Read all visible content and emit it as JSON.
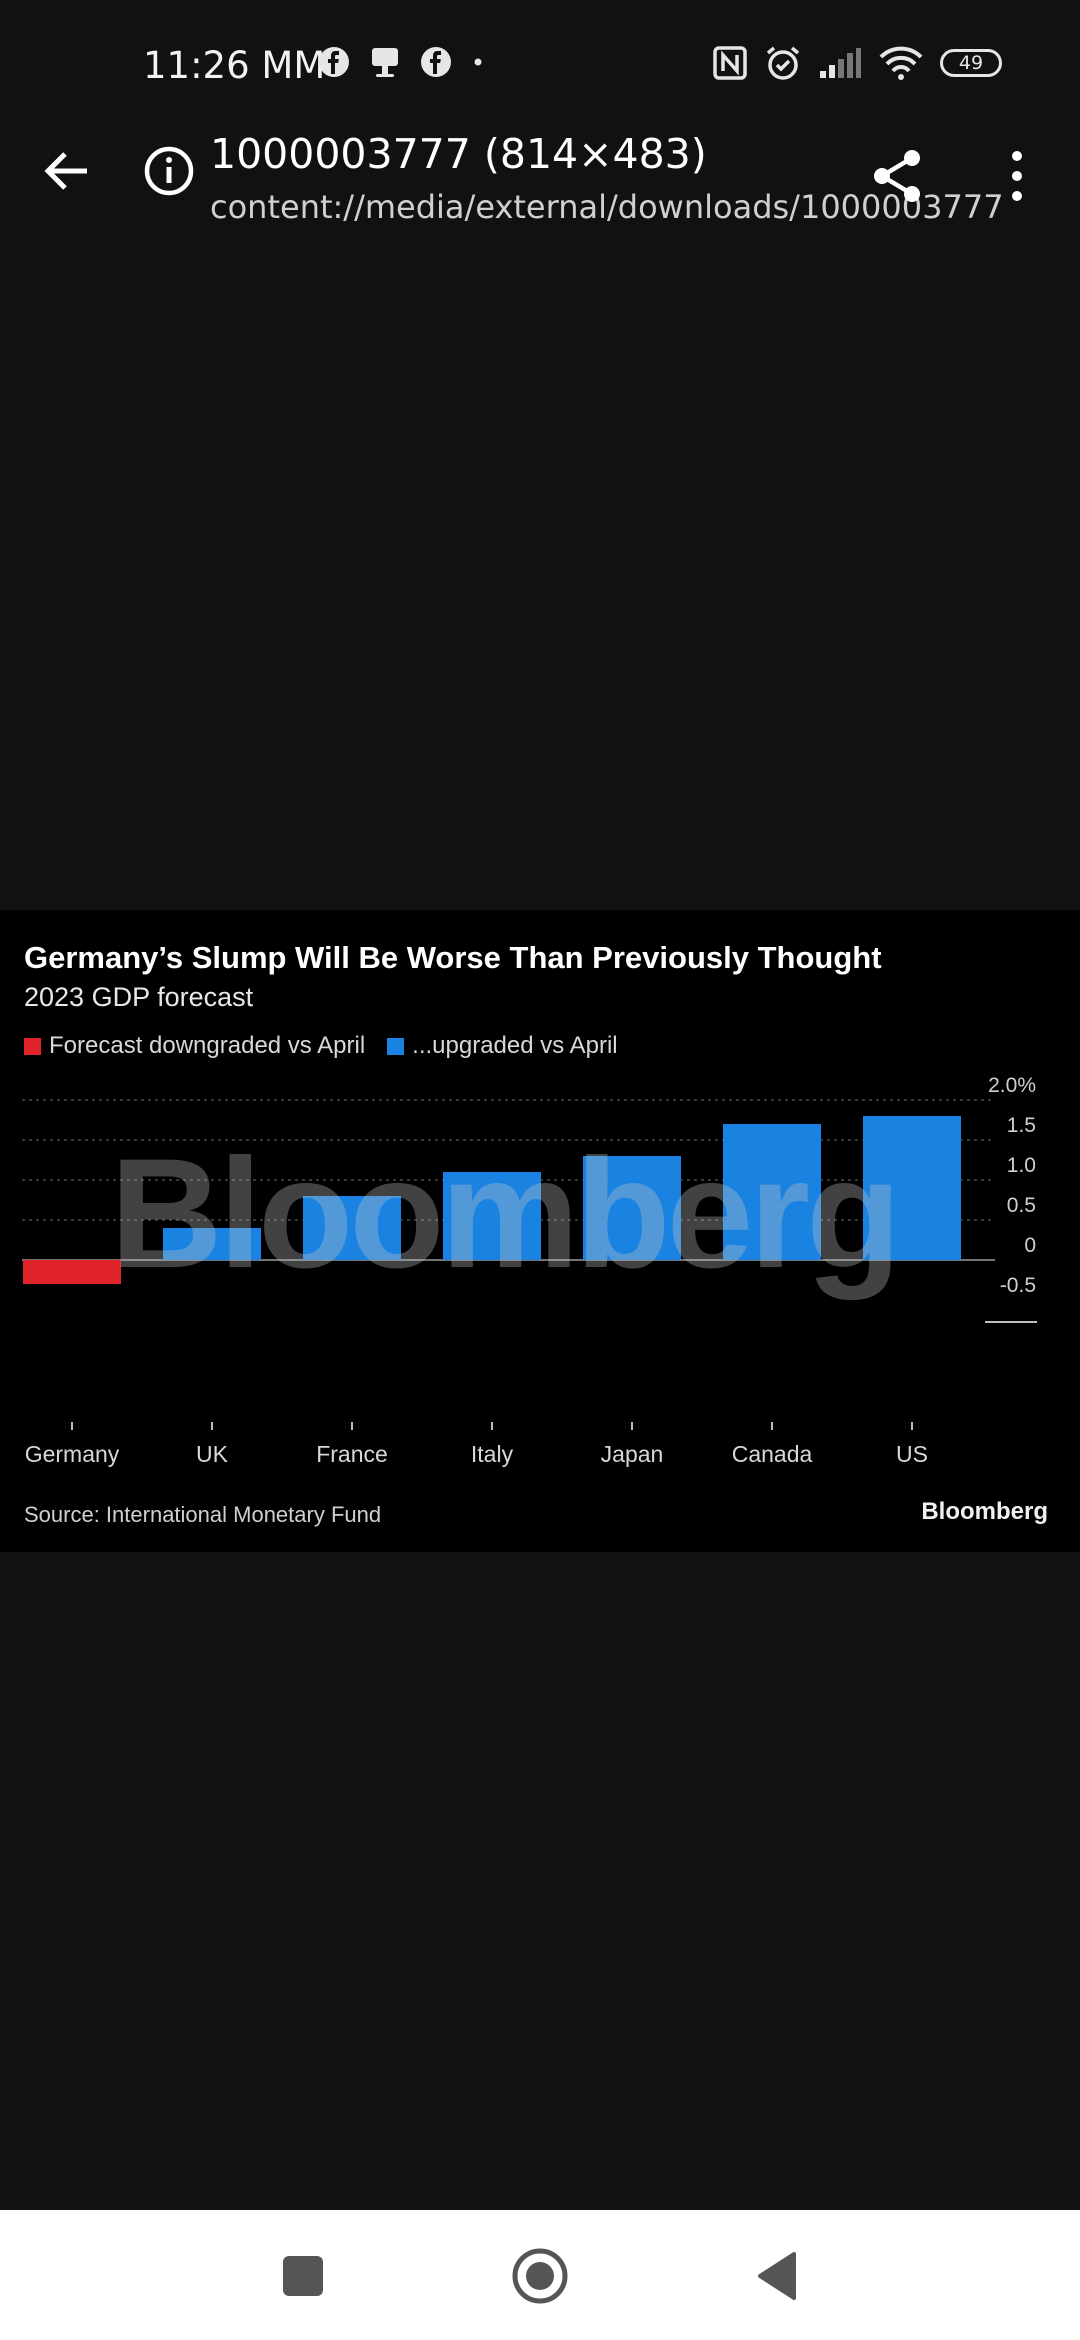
{
  "status_bar": {
    "time": "11:26 MM",
    "battery": "49"
  },
  "app_bar": {
    "title": "1000003777 (814×483)",
    "path": "content://media/external/downloads/1000003777"
  },
  "image_content": {
    "watermark": "Bloomberg",
    "source": "Source: International Monetary Fund",
    "brand": "Bloomberg"
  },
  "chart_data": {
    "type": "bar",
    "title": "Germany’s Slump Will Be Worse Than Previously Thought",
    "subtitle": "2023 GDP forecast",
    "legend": [
      {
        "label": "Forecast downgraded vs April",
        "color": "#e0242a"
      },
      {
        "label": "...upgraded vs April",
        "color": "#1a82e0"
      }
    ],
    "categories": [
      "Germany",
      "UK",
      "France",
      "Italy",
      "Japan",
      "Canada",
      "US"
    ],
    "values": [
      -0.3,
      0.4,
      0.8,
      1.1,
      1.3,
      1.7,
      1.8
    ],
    "bar_colors": [
      "#e0242a",
      "#1a82e0",
      "#1a82e0",
      "#1a82e0",
      "#1a82e0",
      "#1a82e0",
      "#1a82e0"
    ],
    "y_ticks": [
      {
        "value": 2.0,
        "label": "2.0%"
      },
      {
        "value": 1.5,
        "label": "1.5"
      },
      {
        "value": 1.0,
        "label": "1.0"
      },
      {
        "value": 0.5,
        "label": "0.5"
      },
      {
        "value": 0,
        "label": "0"
      },
      {
        "value": -0.5,
        "label": "-0.5"
      }
    ],
    "ylim": [
      -0.5,
      2.0
    ],
    "grid": true,
    "legend_position": "top-left"
  }
}
